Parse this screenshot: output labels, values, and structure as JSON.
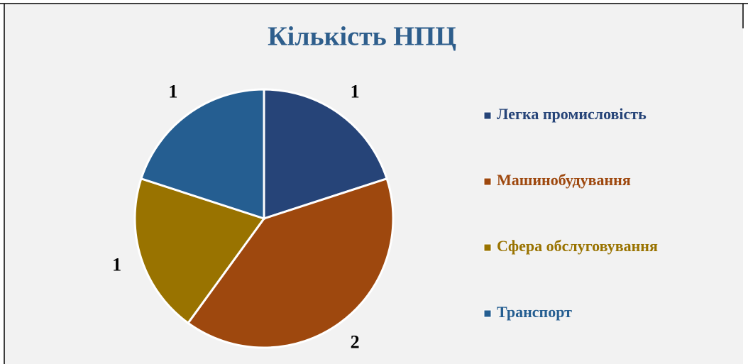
{
  "chart_data": {
    "type": "pie",
    "title": "Кількість НПЦ",
    "categories": [
      "Легка промисловість",
      "Машинобудування",
      "Сфера обслуговування",
      "Транспорт"
    ],
    "values": [
      1,
      2,
      1,
      1
    ],
    "colors": [
      "#264478",
      "#9e480e",
      "#997300",
      "#255e91"
    ],
    "legend": "right"
  }
}
